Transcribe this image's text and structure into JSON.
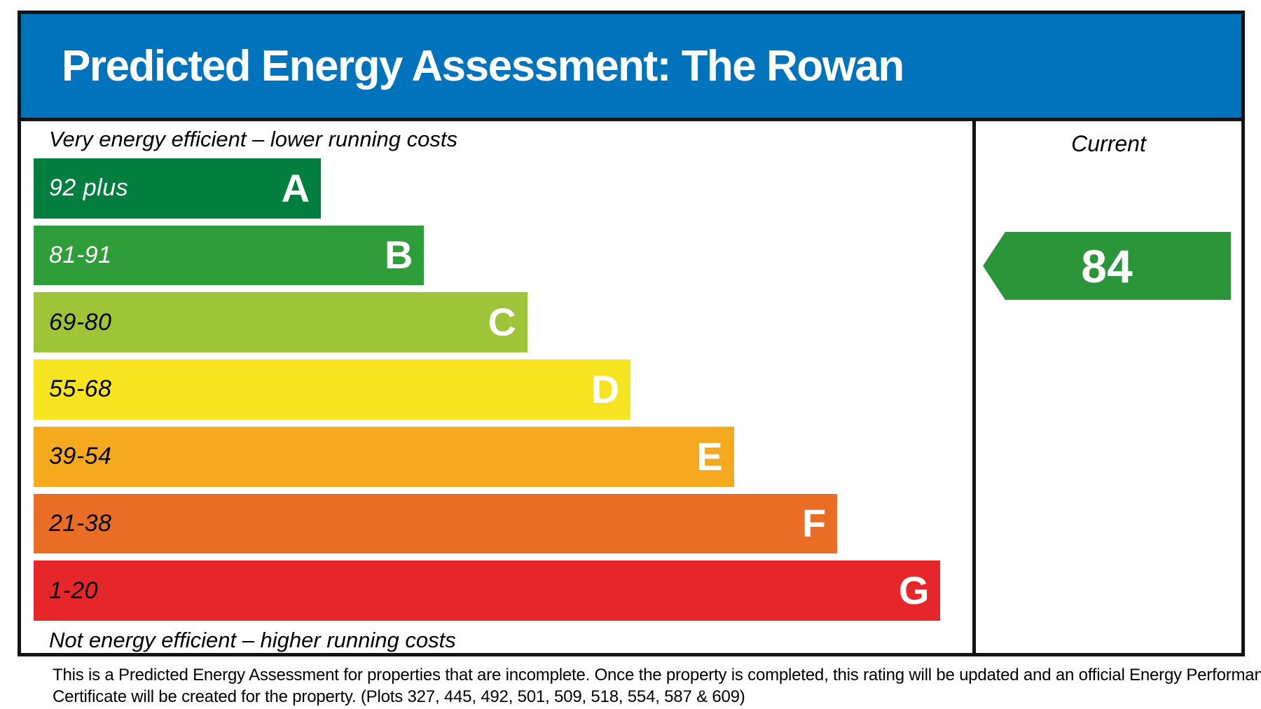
{
  "header": {
    "title": "Predicted Energy Assessment: The Rowan",
    "bg_color": "#0073bd"
  },
  "chart_data": {
    "type": "bar",
    "title": "Predicted Energy Assessment: The Rowan",
    "top_caption": "Very energy efficient – lower running costs",
    "bottom_caption": "Not energy efficient – higher running costs",
    "current_label": "Current",
    "current_value": 84,
    "current_band": "B",
    "current_color": "#2a9639",
    "legend_position": "right-column",
    "bands": [
      {
        "letter": "A",
        "range": "92 plus",
        "score_min": 92,
        "score_max": 100,
        "color": "#027e3e",
        "range_color": "#ffffff",
        "width_pct": 30.6
      },
      {
        "letter": "B",
        "range": "81-91",
        "score_min": 81,
        "score_max": 91,
        "color": "#2f9d3a",
        "range_color": "#ffffff",
        "width_pct": 41.6
      },
      {
        "letter": "C",
        "range": "69-80",
        "score_min": 69,
        "score_max": 80,
        "color": "#9ec437",
        "range_color": "#000000",
        "width_pct": 52.6
      },
      {
        "letter": "D",
        "range": "55-68",
        "score_min": 55,
        "score_max": 68,
        "color": "#f5e41f",
        "range_color": "#000000",
        "width_pct": 63.6
      },
      {
        "letter": "E",
        "range": "39-54",
        "score_min": 39,
        "score_max": 54,
        "color": "#f4a91e",
        "range_color": "#000000",
        "width_pct": 74.6
      },
      {
        "letter": "F",
        "range": "21-38",
        "score_min": 21,
        "score_max": 38,
        "color": "#e96d25",
        "range_color": "#000000",
        "width_pct": 85.6
      },
      {
        "letter": "G",
        "range": "1-20",
        "score_min": 1,
        "score_max": 20,
        "color": "#e5262b",
        "range_color": "#000000",
        "width_pct": 96.6
      }
    ]
  },
  "footer": {
    "lines": [
      "This is a Predicted Energy Assessment for properties that are incomplete. Once the property is completed, this rating will be updated and an official Energy Performance",
      "Certificate will be created for the property. (Plots 327, 445, 492, 501, 509, 518, 554, 587 & 609)"
    ]
  }
}
